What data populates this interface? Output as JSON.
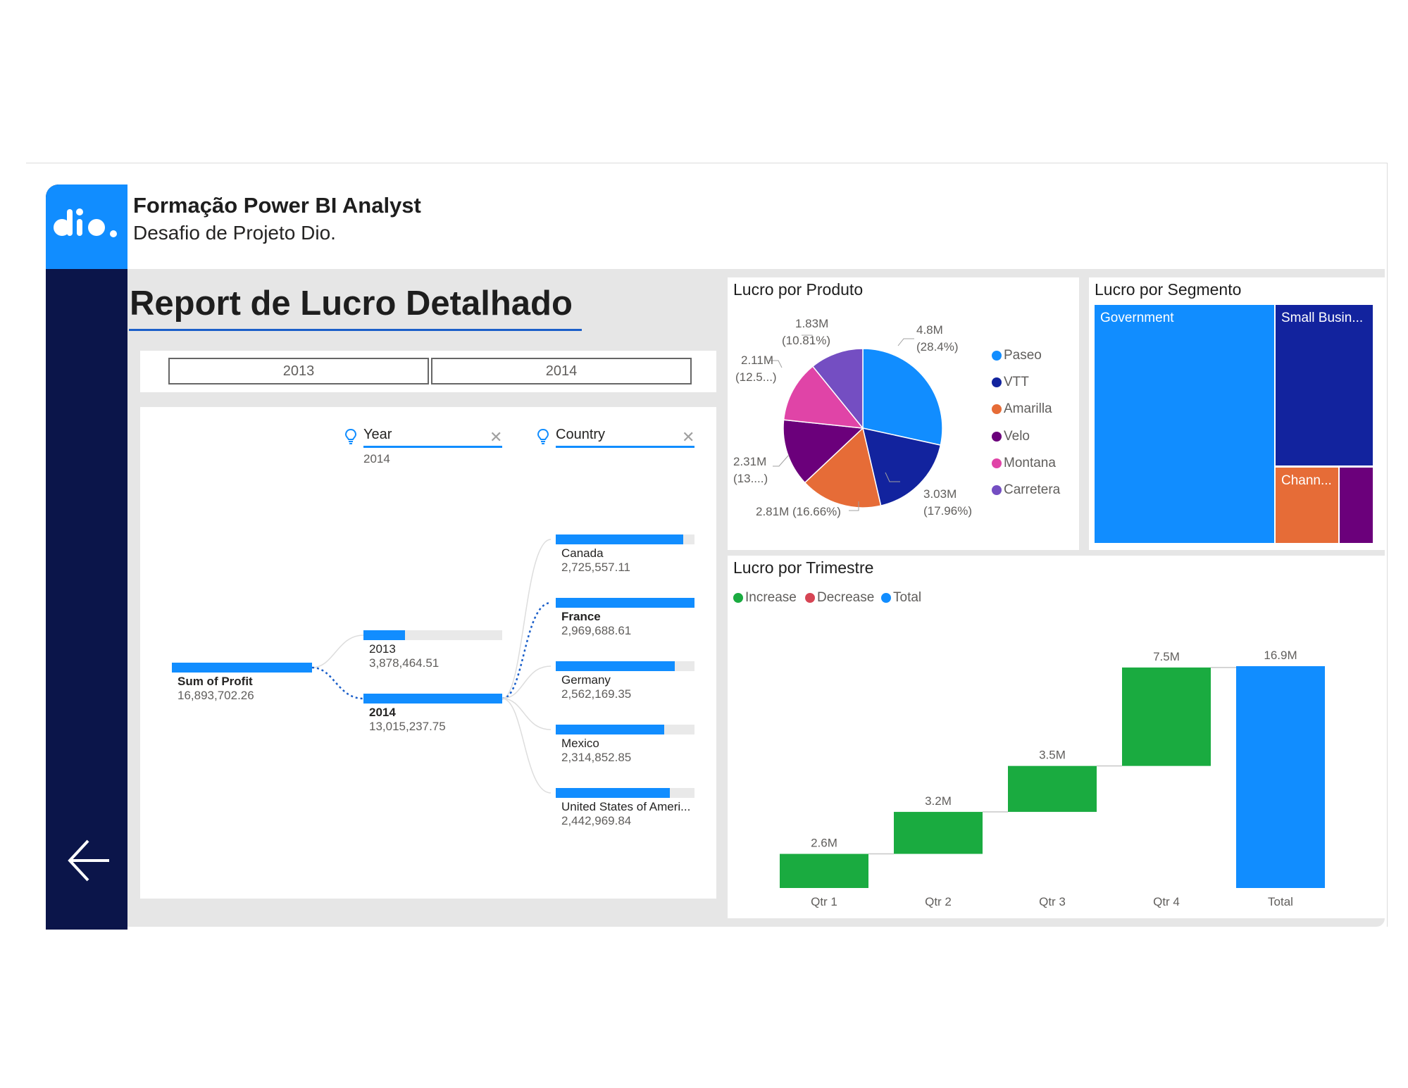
{
  "header": {
    "title": "Formação Power BI Analyst",
    "subtitle": "Desafio de Projeto Dio.",
    "logo_text": "dio."
  },
  "report_title": "Report de Lucro Detalhado",
  "slicer": {
    "options": [
      "2013",
      "2014"
    ]
  },
  "decomposition_tree": {
    "root": {
      "label": "Sum of Profit",
      "value": "16,893,702.26",
      "fraction": 1.0
    },
    "level1": {
      "header": "Year",
      "filter": "2014",
      "items": [
        {
          "label": "2013",
          "value": "3,878,464.51",
          "fraction": 0.3
        },
        {
          "label": "2014",
          "value": "13,015,237.75",
          "fraction": 1.0
        }
      ]
    },
    "level2": {
      "header": "Country",
      "items": [
        {
          "label": "Canada",
          "value": "2,725,557.11",
          "fraction": 0.92
        },
        {
          "label": "France",
          "value": "2,969,688.61",
          "fraction": 1.0
        },
        {
          "label": "Germany",
          "value": "2,562,169.35",
          "fraction": 0.86
        },
        {
          "label": "Mexico",
          "value": "2,314,852.85",
          "fraction": 0.78
        },
        {
          "label": "United States of Ameri...",
          "value": "2,442,969.84",
          "fraction": 0.82
        }
      ]
    }
  },
  "pie": {
    "title": "Lucro por Produto",
    "chart_data": {
      "type": "pie",
      "slices": [
        {
          "name": "Paseo",
          "value": 4.8,
          "label": "4.8M",
          "pct": "(28.4%)",
          "color": "#118dff"
        },
        {
          "name": "VTT",
          "value": 3.03,
          "label": "3.03M",
          "pct": "(17.96%)",
          "color": "#12239e"
        },
        {
          "name": "Amarilla",
          "value": 2.81,
          "label": "2.81M (16.66%)",
          "pct": "",
          "color": "#e66c37"
        },
        {
          "name": "Velo",
          "value": 2.31,
          "label": "2.31M",
          "pct": "(13....)",
          "color": "#6b007b"
        },
        {
          "name": "Montana",
          "value": 2.11,
          "label": "2.11M",
          "pct": "(12.5...)",
          "color": "#e044a7"
        },
        {
          "name": "Carretera",
          "value": 1.83,
          "label": "1.83M",
          "pct": "(10.81%)",
          "color": "#744ec2"
        }
      ]
    }
  },
  "treemap": {
    "title": "Lucro por Segmento",
    "items": [
      {
        "label": "Government",
        "color": "#118dff"
      },
      {
        "label": "Small Busin...",
        "color": "#12239e"
      },
      {
        "label": "Chann...",
        "color": "#e66c37"
      },
      {
        "label": "",
        "color": "#6b007b"
      }
    ]
  },
  "waterfall": {
    "title": "Lucro por Trimestre",
    "legend": [
      {
        "label": "Increase",
        "color": "#1aab40"
      },
      {
        "label": "Decrease",
        "color": "#d64554"
      },
      {
        "label": "Total",
        "color": "#118dff"
      }
    ],
    "chart_data": {
      "type": "bar",
      "subtype": "waterfall",
      "categories": [
        "Qtr 1",
        "Qtr 2",
        "Qtr 3",
        "Qtr 4",
        "Total"
      ],
      "values": [
        2.6,
        3.2,
        3.5,
        7.5,
        16.9
      ],
      "labels": [
        "2.6M",
        "3.2M",
        "3.5M",
        "7.5M",
        "16.9M"
      ],
      "ylim": [
        0,
        16.9
      ]
    }
  }
}
